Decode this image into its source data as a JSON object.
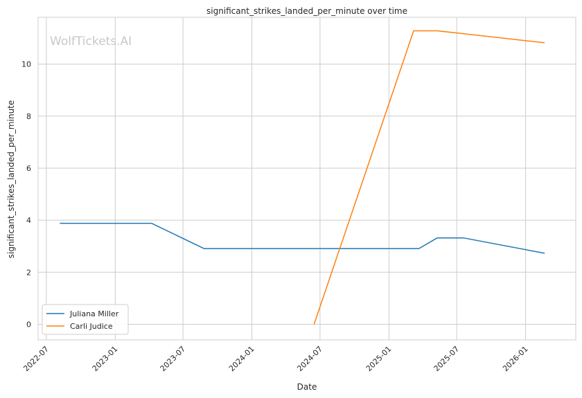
{
  "chart_data": {
    "type": "line",
    "title": "significant_strikes_landed_per_minute over time",
    "xlabel": "Date",
    "ylabel": "significant_strikes_landed_per_minute",
    "watermark": "WolfTickets.AI",
    "x_ticks": [
      "2022-07",
      "2023-01",
      "2023-07",
      "2024-01",
      "2024-07",
      "2025-01",
      "2025-07",
      "2026-01"
    ],
    "y_ticks": [
      0,
      2,
      4,
      6,
      8,
      10
    ],
    "xlim": [
      "2022-06-09",
      "2026-05-15"
    ],
    "ylim": [
      -0.6,
      11.8
    ],
    "grid": true,
    "legend_position": "lower-left",
    "series": [
      {
        "name": "Juliana Miller",
        "color": "#1f77b4",
        "points": [
          {
            "x": "2022-08-06",
            "y": 3.88
          },
          {
            "x": "2023-04-08",
            "y": 3.88
          },
          {
            "x": "2023-08-26",
            "y": 2.91
          },
          {
            "x": "2025-03-22",
            "y": 2.91
          },
          {
            "x": "2025-05-10",
            "y": 3.32
          },
          {
            "x": "2025-07-19",
            "y": 3.32
          },
          {
            "x": "2026-02-21",
            "y": 2.73
          }
        ]
      },
      {
        "name": "Carli Judice",
        "color": "#ff7f0e",
        "points": [
          {
            "x": "2024-06-15",
            "y": 0
          },
          {
            "x": "2025-03-08",
            "y": 11.28
          },
          {
            "x": "2025-05-10",
            "y": 11.28
          },
          {
            "x": "2025-07-12",
            "y": 11.18
          },
          {
            "x": "2026-02-21",
            "y": 10.82
          }
        ]
      }
    ]
  }
}
